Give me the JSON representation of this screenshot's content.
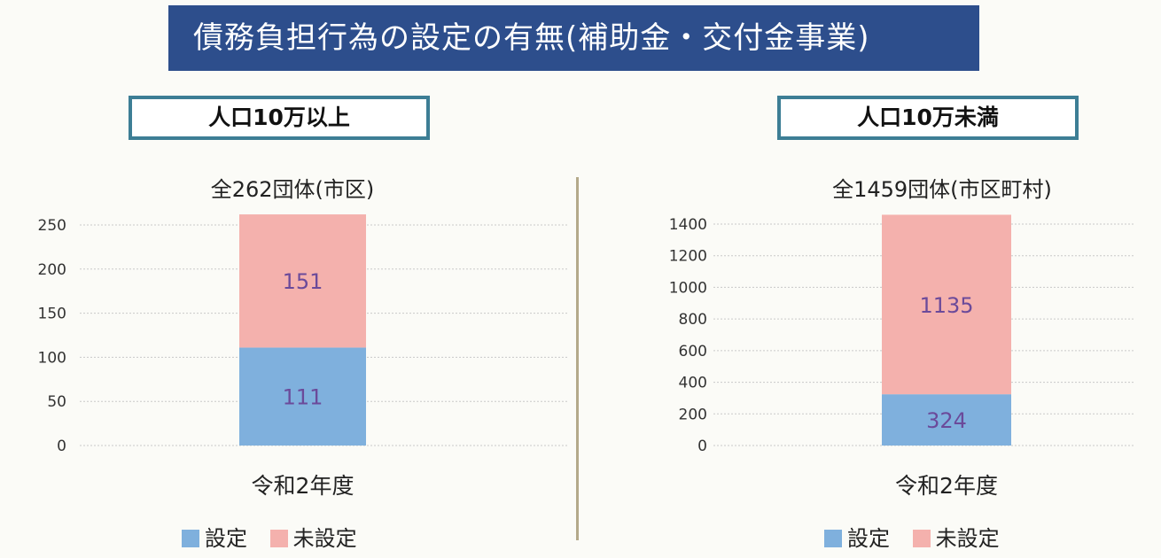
{
  "banner": {
    "title": "債務負担行為の設定の有無(補助金・交付金事業)"
  },
  "colors": {
    "banner": "#2d4e8c",
    "set": "#7fb0dd",
    "unset": "#f4b1ad",
    "label": "#6b4a9a"
  },
  "legend": {
    "set": "設定",
    "unset": "未設定"
  },
  "chart_data": [
    {
      "type": "bar",
      "stacked": true,
      "panel_title": "人口10万以上",
      "title": "全262団体(市区)",
      "categories": [
        "令和2年度"
      ],
      "series": [
        {
          "name": "設定",
          "values": [
            111
          ]
        },
        {
          "name": "未設定",
          "values": [
            151
          ]
        }
      ],
      "ylim": [
        0,
        250
      ],
      "yticks": [
        "0",
        "50",
        "100",
        "150",
        "200",
        "250"
      ],
      "grid": true,
      "legend_position": "bottom"
    },
    {
      "type": "bar",
      "stacked": true,
      "panel_title": "人口10万未満",
      "title": "全1459団体(市区町村)",
      "categories": [
        "令和2年度"
      ],
      "series": [
        {
          "name": "設定",
          "values": [
            324
          ]
        },
        {
          "name": "未設定",
          "values": [
            1135
          ]
        }
      ],
      "ylim": [
        0,
        1400
      ],
      "yticks": [
        "0",
        "200",
        "400",
        "600",
        "800",
        "1000",
        "1200",
        "1400"
      ],
      "grid": true,
      "legend_position": "bottom"
    }
  ]
}
